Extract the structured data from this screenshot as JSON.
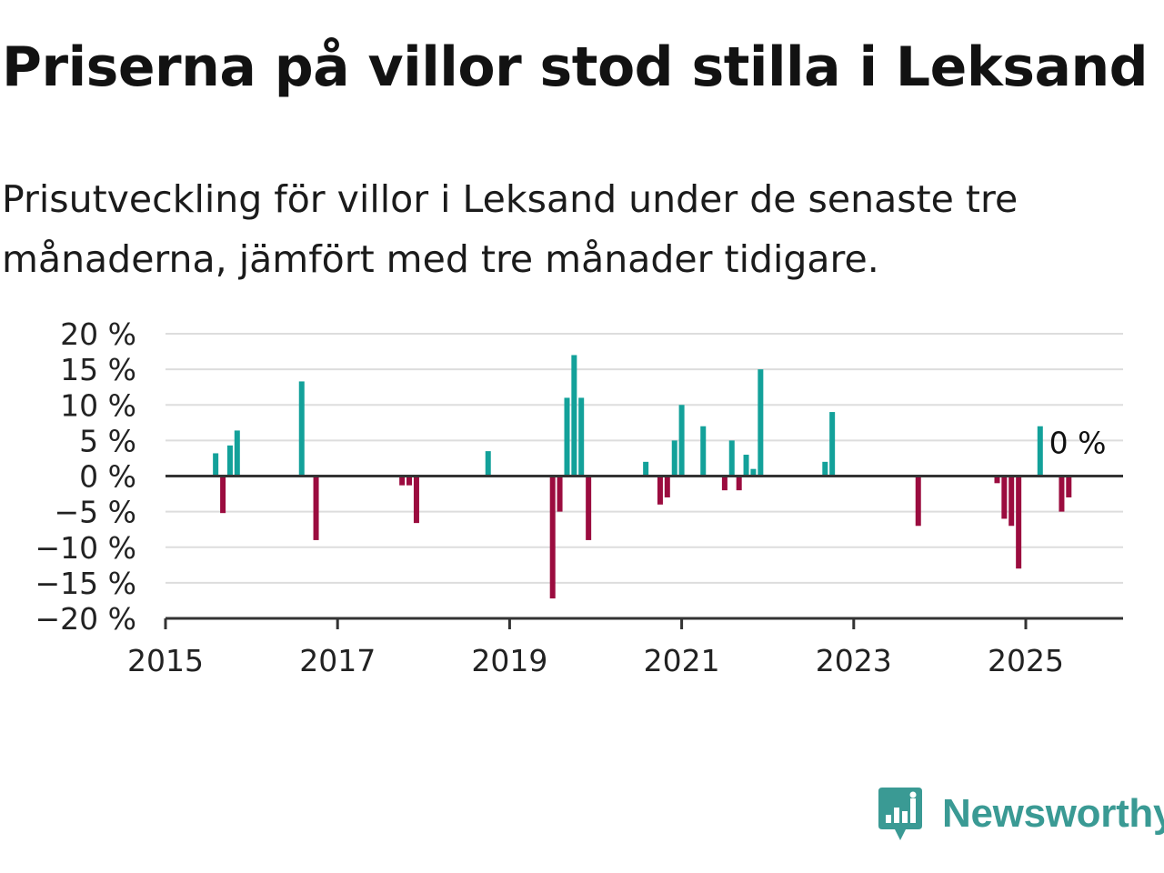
{
  "title": "Priserna på villor stod stilla i Leksand",
  "subtitle": "Prisutveckling för villor i Leksand under de senaste tre månaderna, jämfört med tre månader tidigare.",
  "logo": {
    "text": "Newsworthy",
    "icon": "newsworthy-chart-bubble-icon"
  },
  "colors": {
    "positive": "#13a19a",
    "negative": "#9b0c3f",
    "grid": "#dddddd",
    "axis": "#333333"
  },
  "chart_data": {
    "type": "bar",
    "ylim": [
      -20,
      20
    ],
    "y_ticks": [
      20,
      15,
      10,
      5,
      0,
      -5,
      -10,
      -15,
      -20
    ],
    "y_tick_labels": [
      "20 %",
      "15 %",
      "10 %",
      "5 %",
      "0 %",
      "−5 %",
      "−10 %",
      "−15 %",
      "−20 %"
    ],
    "x_ticks": [
      2015,
      2017,
      2019,
      2021,
      2023,
      2025
    ],
    "x_tick_labels": [
      "2015",
      "2017",
      "2019",
      "2021",
      "2023",
      "2025"
    ],
    "x_range": [
      2015,
      2026.1
    ],
    "grid": true,
    "end_label": "0 %",
    "end_label_x": 2025.25,
    "x": [
      2015.583,
      2015.667,
      2015.75,
      2015.833,
      2016.583,
      2016.75,
      2017.75,
      2017.833,
      2017.917,
      2018.75,
      2019.5,
      2019.583,
      2019.667,
      2019.75,
      2019.833,
      2019.917,
      2020.583,
      2020.75,
      2020.833,
      2020.917,
      2021.0,
      2021.25,
      2021.5,
      2021.583,
      2021.667,
      2021.75,
      2021.833,
      2021.917,
      2022.667,
      2022.75,
      2023.75,
      2024.667,
      2024.75,
      2024.833,
      2024.917,
      2025.167,
      2025.417,
      2025.5
    ],
    "values": [
      3.2,
      -5.2,
      4.3,
      6.4,
      13.3,
      -9.0,
      -1.3,
      -1.3,
      -6.6,
      3.5,
      -17.2,
      -5.0,
      11.0,
      17.0,
      11.0,
      -9.0,
      2.0,
      -4.0,
      -3.0,
      5.0,
      10.0,
      7.0,
      -2.0,
      5.0,
      -2.0,
      3.0,
      1.0,
      15.0,
      2.0,
      9.0,
      -7.0,
      -1.0,
      -6.0,
      -7.0,
      -13.0,
      7.0,
      -5.0,
      -3.0
    ]
  }
}
